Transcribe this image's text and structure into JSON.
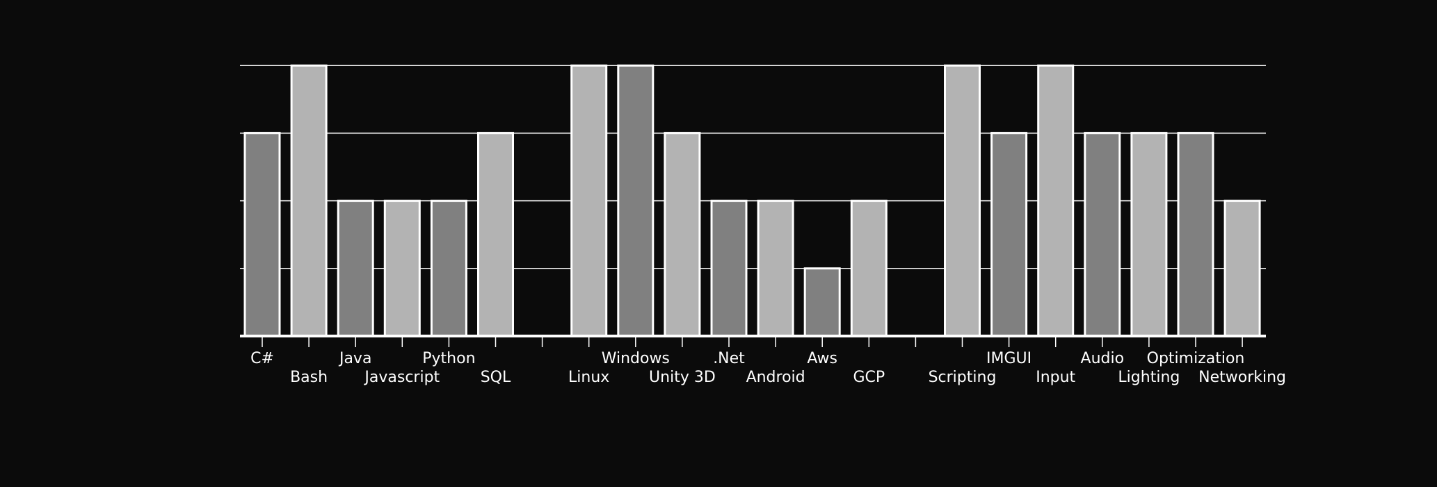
{
  "chart_data": {
    "type": "bar",
    "categories": [
      "C#",
      "Bash",
      "Java",
      "Javascript",
      "Python",
      "SQL",
      "",
      "Linux",
      "Windows",
      "Unity 3D",
      ".Net",
      "Android",
      "Aws",
      "GCP",
      "",
      "Scripting",
      "IMGUI",
      "Input",
      "Audio",
      "Lighting",
      "Optimization",
      "Networking"
    ],
    "values": [
      3,
      4,
      2,
      2,
      2,
      3,
      0,
      4,
      4,
      3,
      2,
      2,
      1,
      2,
      0,
      4,
      3,
      4,
      3,
      3,
      3,
      2
    ],
    "ylim": [
      0,
      4
    ],
    "grid": true,
    "legend": "none",
    "colors": {
      "background": "#0b0b0b",
      "bar_dark": "#808080",
      "bar_light": "#b3b3b3",
      "bar_edge": "#ffffff",
      "grid": "#ffffff",
      "text": "#ffffff"
    }
  }
}
